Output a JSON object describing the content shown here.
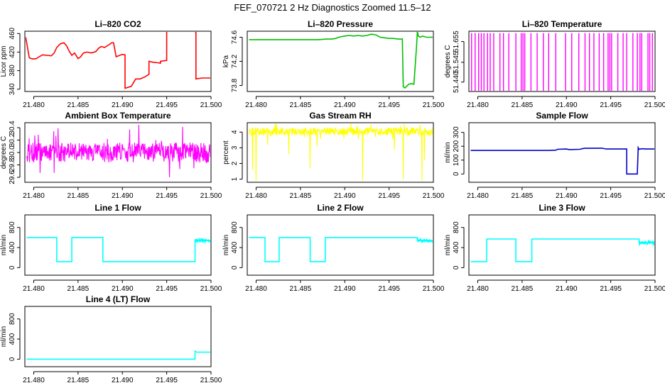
{
  "figure": {
    "title": "FEF_070721  2 Hz Diagnostics Zoomed 11.5–12"
  },
  "chart_data": [
    {
      "type": "line",
      "title": "Li–820 CO2",
      "xlabel": "",
      "ylabel": "Licor ppm",
      "color": "#ff0000",
      "xlim": [
        21.479,
        21.5
      ],
      "ylim": [
        335,
        465
      ],
      "xticks": [
        "21.480",
        "21.485",
        "21.490",
        "21.495",
        "21.500"
      ],
      "yticks": [
        "340",
        "380",
        "420",
        "460"
      ],
      "grid": false,
      "series": [
        {
          "x": [
            21.4791,
            21.4793,
            21.4795,
            21.4797,
            21.48,
            21.4803,
            21.4806,
            21.481,
            21.4815,
            21.482,
            21.4823,
            21.4826,
            21.483,
            21.4834,
            21.4837,
            21.484,
            21.4843,
            21.4846,
            21.485,
            21.4853,
            21.4856,
            21.486,
            21.4865,
            21.487,
            21.4873,
            21.4876,
            21.488,
            21.4885,
            21.4888,
            21.489,
            21.4893,
            21.4897,
            21.49,
            21.4903,
            21.4903,
            21.491,
            21.4915,
            21.492,
            21.4925,
            21.493,
            21.493,
            21.4935,
            21.494,
            21.4943,
            21.4943,
            21.495,
            21.495,
            21.496,
            21.497,
            21.498,
            21.4983,
            21.4983,
            21.499,
            21.5
          ],
          "y": [
            452,
            430,
            408,
            406,
            405,
            406,
            410,
            414,
            413,
            412,
            418,
            430,
            438,
            440,
            434,
            422,
            413,
            418,
            406,
            410,
            418,
            420,
            418,
            421,
            428,
            432,
            430,
            436,
            440,
            440,
            410,
            413,
            415,
            414,
            342,
            346,
            362,
            362,
            366,
            372,
            400,
            398,
            397,
            396,
            400,
            402,
            470,
            470,
            470,
            470,
            462,
            362,
            364,
            364
          ]
        }
      ]
    },
    {
      "type": "line",
      "title": "Li–820 Pressure",
      "xlabel": "",
      "ylabel": "kPa",
      "color": "#00c000",
      "xlim": [
        21.479,
        21.5
      ],
      "ylim": [
        73.7,
        74.7
      ],
      "xticks": [
        "21.480",
        "21.485",
        "21.490",
        "21.495",
        "21.500"
      ],
      "yticks": [
        "73.8",
        "74.2",
        "74.6"
      ],
      "grid": false,
      "series": [
        {
          "x": [
            21.4792,
            21.48,
            21.481,
            21.482,
            21.483,
            21.484,
            21.485,
            21.486,
            21.487,
            21.488,
            21.4885,
            21.489,
            21.4893,
            21.49,
            21.4905,
            21.491,
            21.4915,
            21.492,
            21.4925,
            21.493,
            21.4935,
            21.494,
            21.4945,
            21.495,
            21.4955,
            21.496,
            21.4965,
            21.4966,
            21.4968,
            21.4972,
            21.4975,
            21.4978,
            21.4981,
            21.4982,
            21.4983,
            21.4985,
            21.4988,
            21.4992,
            21.4996,
            21.5
          ],
          "y": [
            74.56,
            74.56,
            74.56,
            74.56,
            74.56,
            74.56,
            74.56,
            74.56,
            74.56,
            74.57,
            74.57,
            74.58,
            74.6,
            74.62,
            74.63,
            74.62,
            74.63,
            74.62,
            74.63,
            74.65,
            74.64,
            74.6,
            74.59,
            74.58,
            74.58,
            74.57,
            74.57,
            73.78,
            73.76,
            73.82,
            73.83,
            73.82,
            74.45,
            74.7,
            74.62,
            74.6,
            74.62,
            74.6,
            74.6,
            74.6
          ]
        }
      ]
    },
    {
      "type": "line",
      "title": "Li–820 Temperature",
      "xlabel": "",
      "ylabel": "degrees C",
      "color": "#ff00ff",
      "xlim": [
        21.479,
        21.5
      ],
      "ylim": [
        51.39,
        51.71
      ],
      "xticks": [
        "21.480",
        "21.485",
        "21.490",
        "21.495",
        "21.500"
      ],
      "yticks": [
        "51.440",
        "51.545",
        "51.655"
      ],
      "grid": false,
      "baseline": 51.39,
      "high": 51.7,
      "spikes_x": [
        21.4793,
        21.4797,
        21.4801,
        21.4804,
        21.4807,
        21.4811,
        21.4814,
        21.4818,
        21.4825,
        21.4829,
        21.4835,
        21.4843,
        21.4849,
        21.4851,
        21.4853,
        21.486,
        21.4867,
        21.4874,
        21.488,
        21.4888,
        21.4899,
        21.4906,
        21.4914,
        21.4921,
        21.4926,
        21.4931,
        21.4937,
        21.4942,
        21.4947,
        21.4949,
        21.4951,
        21.4958,
        21.4964,
        21.4968,
        21.4975,
        21.498,
        21.4983,
        21.4985,
        21.4992,
        21.4994,
        21.4997
      ]
    },
    {
      "type": "line",
      "title": "Ambient Box Temperature",
      "xlabel": "",
      "ylabel": "degrees C",
      "color": "#ff00ff",
      "xlim": [
        21.479,
        21.5
      ],
      "ylim": [
        29.52,
        30.48
      ],
      "xticks": [
        "21.480",
        "21.485",
        "21.490",
        "21.495",
        "21.500"
      ],
      "yticks": [
        "29.6",
        "29.8",
        "30.0",
        "30.2",
        "30.4"
      ],
      "grid": false,
      "noise": {
        "center": 30.0,
        "amplitude": 0.16,
        "min": 29.6,
        "max": 30.45
      }
    },
    {
      "type": "line",
      "title": "Gas Stream RH",
      "xlabel": "",
      "ylabel": "percent",
      "color": "#ffff00",
      "xlim": [
        21.479,
        21.5
      ],
      "ylim": [
        0.8,
        4.6
      ],
      "xticks": [
        "21.480",
        "21.485",
        "21.490",
        "21.495",
        "21.500"
      ],
      "yticks": [
        "1",
        "2",
        "3",
        "4"
      ],
      "grid": false,
      "noise": {
        "center": 4.05,
        "amplitude": 0.25,
        "min": 3.5,
        "max": 4.6
      },
      "dips": [
        [
          21.4796,
          1.6
        ],
        [
          21.48,
          0.9
        ],
        [
          21.4813,
          3.2
        ],
        [
          21.4837,
          2.6
        ],
        [
          21.4861,
          1.7
        ],
        [
          21.4869,
          3.1
        ],
        [
          21.492,
          0.9
        ],
        [
          21.4956,
          2.9
        ],
        [
          21.4966,
          1.0
        ],
        [
          21.4987,
          0.9
        ],
        [
          21.499,
          2.2
        ]
      ]
    },
    {
      "type": "line",
      "title": "Sample Flow",
      "xlabel": "",
      "ylabel": "ml/min",
      "color": "#0000c8",
      "xlim": [
        21.479,
        21.5
      ],
      "ylim": [
        -60,
        370
      ],
      "xticks": [
        "21.480",
        "21.485",
        "21.490",
        "21.495",
        "21.500"
      ],
      "yticks": [
        "0",
        "100",
        "200",
        "300"
      ],
      "grid": false,
      "series": [
        {
          "x": [
            21.4792,
            21.48,
            21.485,
            21.488,
            21.4888,
            21.489,
            21.49,
            21.4903,
            21.4915,
            21.492,
            21.494,
            21.4945,
            21.4968,
            21.4968,
            21.498,
            21.4981,
            21.4982,
            21.4985,
            21.499,
            21.5
          ],
          "y": [
            170,
            170,
            170,
            170,
            172,
            178,
            180,
            176,
            178,
            185,
            186,
            180,
            180,
            0,
            0,
            190,
            178,
            182,
            180,
            180
          ]
        }
      ]
    },
    {
      "type": "line",
      "title": "Line 1 Flow",
      "xlabel": "",
      "ylabel": "ml/min",
      "color": "#00ffff",
      "xlim": [
        21.479,
        21.5
      ],
      "ylim": [
        -150,
        1050
      ],
      "xticks": [
        "21.480",
        "21.485",
        "21.490",
        "21.495",
        "21.500"
      ],
      "yticks": [
        "0",
        "400",
        "800"
      ],
      "grid": false,
      "series": [
        {
          "x": [
            21.4792,
            21.4826,
            21.4826,
            21.4843,
            21.4843,
            21.4878,
            21.4878,
            21.4982,
            21.4982,
            21.5
          ],
          "y": [
            600,
            600,
            120,
            120,
            600,
            600,
            120,
            120,
            540,
            540
          ]
        }
      ],
      "noisy_segments": [
        [
          21.4982,
          21.5,
          540,
          40
        ]
      ]
    },
    {
      "type": "line",
      "title": "Line 2 Flow",
      "xlabel": "",
      "ylabel": "ml/min",
      "color": "#00ffff",
      "xlim": [
        21.479,
        21.5
      ],
      "ylim": [
        -150,
        1050
      ],
      "xticks": [
        "21.480",
        "21.485",
        "21.490",
        "21.495",
        "21.500"
      ],
      "yticks": [
        "0",
        "400",
        "800"
      ],
      "grid": false,
      "series": [
        {
          "x": [
            21.4792,
            21.481,
            21.481,
            21.4826,
            21.4826,
            21.4861,
            21.4861,
            21.4878,
            21.4878,
            21.4982,
            21.4982,
            21.5
          ],
          "y": [
            600,
            600,
            120,
            120,
            600,
            600,
            120,
            120,
            600,
            600,
            540,
            540
          ]
        }
      ],
      "noisy_segments": [
        [
          21.4982,
          21.5,
          540,
          40
        ]
      ]
    },
    {
      "type": "line",
      "title": "Line 3 Flow",
      "xlabel": "",
      "ylabel": "ml/min",
      "color": "#00ffff",
      "xlim": [
        21.479,
        21.5
      ],
      "ylim": [
        -150,
        1050
      ],
      "xticks": [
        "21.480",
        "21.485",
        "21.490",
        "21.495",
        "21.500"
      ],
      "yticks": [
        "0",
        "400",
        "800"
      ],
      "grid": false,
      "series": [
        {
          "x": [
            21.4792,
            21.481,
            21.481,
            21.4843,
            21.4843,
            21.4861,
            21.4861,
            21.4982,
            21.4982,
            21.5
          ],
          "y": [
            120,
            120,
            570,
            570,
            120,
            120,
            570,
            570,
            490,
            490
          ]
        }
      ],
      "noisy_segments": [
        [
          21.4982,
          21.5,
          490,
          40
        ]
      ]
    },
    {
      "type": "line",
      "title": "Line 4 (LT) Flow",
      "xlabel": "",
      "ylabel": "ml/min",
      "color": "#00ffff",
      "xlim": [
        21.479,
        21.5
      ],
      "ylim": [
        -150,
        1050
      ],
      "xticks": [
        "21.480",
        "21.485",
        "21.490",
        "21.495",
        "21.500"
      ],
      "yticks": [
        "0",
        "400",
        "800"
      ],
      "grid": false,
      "series": [
        {
          "x": [
            21.4792,
            21.4982,
            21.4982,
            21.4984,
            21.5
          ],
          "y": [
            0,
            0,
            160,
            140,
            140
          ]
        }
      ]
    }
  ]
}
